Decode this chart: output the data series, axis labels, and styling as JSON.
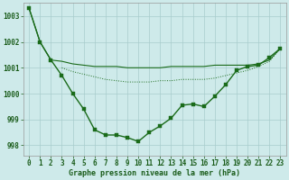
{
  "x_values": [
    0,
    1,
    2,
    3,
    4,
    5,
    6,
    7,
    8,
    9,
    10,
    11,
    12,
    13,
    14,
    15,
    16,
    17,
    18,
    19,
    20,
    21,
    22,
    23
  ],
  "line_main_y": [
    1003.3,
    1002.0,
    1001.3,
    1000.7,
    1000.0,
    999.4,
    998.6,
    998.4,
    998.4,
    998.3,
    998.15,
    998.5,
    998.75,
    999.05,
    999.55,
    999.6,
    999.5,
    999.9,
    1000.35,
    1000.9,
    1001.05,
    1001.1,
    1001.4,
    1001.75
  ],
  "line_upper_y": [
    1003.3,
    1002.0,
    1001.3,
    1001.25,
    1001.15,
    1001.1,
    1001.05,
    1001.05,
    1001.05,
    1001.0,
    1001.0,
    1001.0,
    1001.0,
    1001.05,
    1001.05,
    1001.05,
    1001.05,
    1001.1,
    1001.1,
    1001.1,
    1001.1,
    1001.15,
    1001.3,
    1001.75
  ],
  "line_lower_y": [
    null,
    null,
    null,
    1001.0,
    1000.85,
    1000.75,
    1000.65,
    1000.55,
    1000.5,
    1000.45,
    1000.45,
    1000.45,
    1000.5,
    1000.5,
    1000.55,
    1000.55,
    1000.55,
    1000.6,
    1000.7,
    1000.8,
    1000.9,
    1001.05,
    1001.25,
    1001.75
  ],
  "ylim": [
    997.6,
    1003.5
  ],
  "yticks": [
    998,
    999,
    1000,
    1001,
    1002,
    1003
  ],
  "xlim": [
    -0.5,
    23.5
  ],
  "bg_color": "#ceeaea",
  "grid_color": "#a8cccc",
  "line_color": "#1a6b1a",
  "xlabel": "Graphe pression niveau de la mer (hPa)",
  "font_color": "#1a5c1a",
  "tick_font_size": 5.5,
  "xlabel_font_size": 6.0
}
